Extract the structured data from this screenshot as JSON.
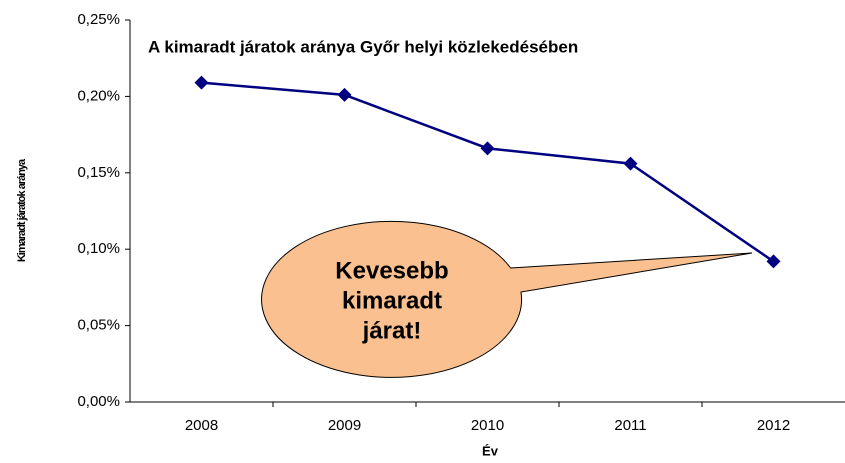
{
  "chart_data": {
    "type": "line",
    "title": "A kimaradt járatok aránya Győr helyi közlekedésében",
    "x_label": "Év",
    "y_label": "Kimaradt járatok aránya",
    "annotation": [
      "Kevesebb",
      "kimaradt",
      "járat!"
    ],
    "categories": [
      "2008",
      "2009",
      "2010",
      "2011",
      "2012"
    ],
    "series": [
      {
        "name": "Kimaradt járatok aránya",
        "color": "#000080",
        "values": [
          0.209,
          0.201,
          0.166,
          0.156,
          0.092
        ]
      }
    ],
    "ylim": [
      0,
      0.25
    ],
    "yticks": [
      {
        "value": 0,
        "label": "0,00%"
      },
      {
        "value": 0.05,
        "label": "0,05%"
      },
      {
        "value": 0.1,
        "label": "0,10%"
      },
      {
        "value": 0.15,
        "label": "0,15%"
      },
      {
        "value": 0.2,
        "label": "0,20%"
      },
      {
        "value": 0.25,
        "label": "0,25%"
      }
    ],
    "grid": false
  }
}
